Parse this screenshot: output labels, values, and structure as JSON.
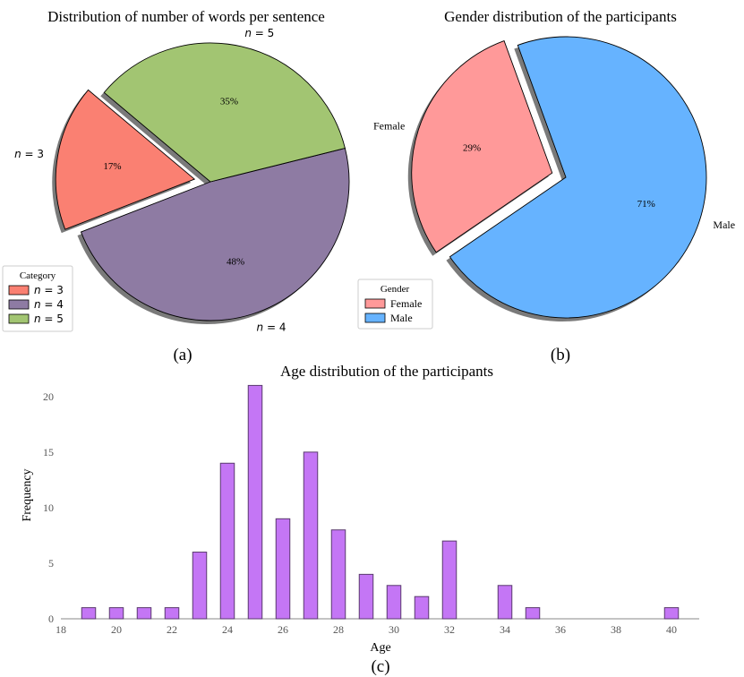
{
  "captions": {
    "a": "(a)",
    "b": "(b)",
    "c": "(c)"
  },
  "chart_data": [
    {
      "type": "pie",
      "title": "Distribution of number of words per sentence",
      "slices": [
        {
          "label": "n = 3",
          "value": 17,
          "pct": "17%",
          "color": "#fa8072",
          "explode": true
        },
        {
          "label": "n = 4",
          "value": 48,
          "pct": "48%",
          "color": "#8e7ba3",
          "explode": false
        },
        {
          "label": "n = 5",
          "value": 35,
          "pct": "35%",
          "color": "#a2c572",
          "explode": false
        }
      ],
      "legend": {
        "title": "Category",
        "placement": "lower-left",
        "entries": [
          "n = 3",
          "n = 4",
          "n = 5"
        ]
      }
    },
    {
      "type": "pie",
      "title": "Gender distribution of the participants",
      "slices": [
        {
          "label": "Female",
          "value": 29,
          "pct": "29%",
          "color": "#ff9999",
          "explode": true
        },
        {
          "label": "Male",
          "value": 71,
          "pct": "71%",
          "color": "#66b3ff",
          "explode": false
        }
      ],
      "legend": {
        "title": "Gender",
        "placement": "lower-left",
        "entries": [
          "Female",
          "Male"
        ]
      }
    },
    {
      "type": "bar",
      "title": "Age distribution of the participants",
      "xlabel": "Age",
      "ylabel": "Frequency",
      "x": [
        19,
        20,
        21,
        22,
        23,
        24,
        25,
        26,
        27,
        28,
        29,
        30,
        31,
        32,
        34,
        35,
        40
      ],
      "values": [
        1,
        1,
        1,
        1,
        6,
        14,
        21,
        9,
        15,
        8,
        4,
        3,
        2,
        7,
        3,
        1,
        1
      ],
      "xlim": [
        18,
        41
      ],
      "ylim": [
        0,
        22
      ],
      "xticks": [
        "18",
        "20",
        "22",
        "24",
        "26",
        "28",
        "30",
        "32",
        "34",
        "36",
        "38",
        "40"
      ],
      "yticks": [
        "0",
        "5",
        "10",
        "15",
        "20"
      ],
      "bar_color": "#c476f5",
      "edge_color": "#5a3a6e",
      "grid": false
    }
  ]
}
